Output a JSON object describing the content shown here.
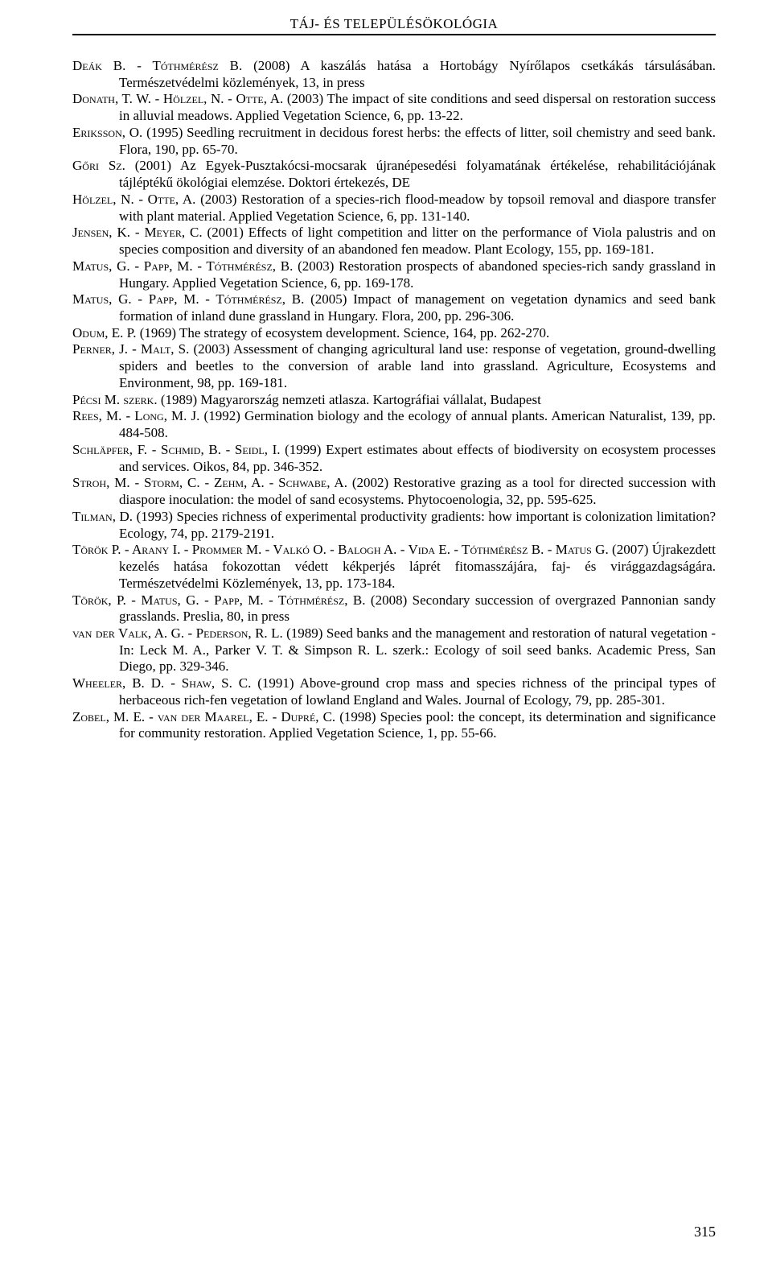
{
  "running_head": "TÁJ- ÉS TELEPÜLÉSÖKOLÓGIA",
  "page_number": "315",
  "references": [
    {
      "authors": "Deák B. - Tóthmérész B.",
      "rest": " (2008) A kaszálás hatása a Hortobágy Nyírőlapos csetkákás társulásában. Természetvédelmi közlemények, 13, in press"
    },
    {
      "authors": "Donath, T. W. - Hölzel, N. - Otte, A.",
      "rest": " (2003) The impact of site conditions and seed dispersal on restoration success in alluvial meadows. Applied Vegetation Science, 6, pp. 13-22."
    },
    {
      "authors": "Eriksson, O.",
      "rest": " (1995) Seedling recruitment in decidous forest herbs: the effects of litter, soil chemistry and seed bank. Flora, 190, pp. 65-70."
    },
    {
      "authors": "Gőri Sz.",
      "rest": " (2001) Az Egyek-Pusztakócsi-mocsarak újranépesedési folyamatának értékelése, rehabilitációjának tájléptékű ökológiai elemzése. Doktori értekezés, DE"
    },
    {
      "authors": "Hölzel, N. - Otte, A.",
      "rest": " (2003) Restoration of a species-rich flood-meadow by topsoil removal and diaspore transfer with plant material. Applied Vegetation Science, 6, pp. 131-140."
    },
    {
      "authors": "Jensen, K. - Meyer, C.",
      "rest": " (2001) Effects of light competition and litter on the performance of Viola palustris and on species composition and diversity of an abandoned fen meadow. Plant Ecology, 155, pp. 169-181."
    },
    {
      "authors": "Matus, G. - Papp, M. - Tóthmérész, B.",
      "rest": " (2003) Restoration prospects of abandoned species-rich sandy grassland in Hungary. Applied Vegetation Science, 6, pp. 169-178."
    },
    {
      "authors": "Matus, G. - Papp, M. - Tóthmérész, B.",
      "rest": " (2005) Impact of management on vegetation dynamics and seed bank formation of inland dune grassland in Hungary. Flora, 200, pp. 296-306."
    },
    {
      "authors": "Odum, E. P.",
      "rest": " (1969) The strategy of ecosystem development. Science, 164, pp. 262-270."
    },
    {
      "authors": "Perner, J. - Malt, S.",
      "rest": " (2003) Assessment of changing agricultural land use: response of vegetation, ground-dwelling spiders and beetles to the conversion of arable land into grassland. Agriculture, Ecosystems and Environment, 98, pp. 169-181."
    },
    {
      "authors": "Pécsi M. szerk.",
      "rest": " (1989) Magyarország nemzeti atlasza. Kartográfiai vállalat, Budapest"
    },
    {
      "authors": "Rees, M. - Long, M. J.",
      "rest": " (1992) Germination biology and the ecology of annual plants. American Naturalist, 139, pp. 484-508."
    },
    {
      "authors": "Schläpfer, F. - Schmid, B. - Seidl, I.",
      "rest": " (1999) Expert estimates about effects of biodiversity on ecosystem processes and services. Oikos, 84, pp. 346-352."
    },
    {
      "authors": "Stroh, M. - Storm, C. - Zehm, A. - Schwabe, A.",
      "rest": " (2002) Restorative grazing as a tool for directed succession with diaspore inoculation: the model of sand ecosystems. Phytocoenologia, 32, pp. 595-625."
    },
    {
      "authors": "Tilman, D.",
      "rest": " (1993) Species richness of experimental productivity gradients: how important is colonization limitation? Ecology, 74, pp. 2179-2191."
    },
    {
      "authors": "Török P. - Arany I. - Prommer M. - Valkó O. - Balogh A. - Vida E. - Tóthmérész B. - Matus G.",
      "rest": " (2007) Újrakezdett kezelés hatása fokozottan védett kékperjés láprét fitomasszájára, faj- és virággazdagságára. Természetvédelmi Közlemények, 13, pp. 173-184."
    },
    {
      "authors": "Török, P. - Matus, G. - Papp, M. - Tóthmérész, B.",
      "rest": " (2008) Secondary succession of overgrazed Pannonian sandy grasslands. Preslia, 80, in press"
    },
    {
      "authors": "van der Valk, A. G. - Pederson, R. L.",
      "rest": " (1989) Seed banks and the management and restoration of natural vegetation - In: Leck M. A., Parker V. T. & Simpson R. L. szerk.: Ecology of soil seed banks. Academic Press, San Diego, pp. 329-346."
    },
    {
      "authors": "Wheeler, B. D. - Shaw, S. C.",
      "rest": " (1991) Above-ground crop mass and species richness of the principal types of herbaceous rich-fen vegetation of lowland England and Wales. Journal of Ecology, 79, pp. 285-301."
    },
    {
      "authors": "Zobel, M. E. - van der Maarel, E. - Dupré, C.",
      "rest": " (1998) Species pool: the concept, its determination and significance for community restoration. Applied Vegetation Science, 1, pp. 55-66."
    }
  ]
}
